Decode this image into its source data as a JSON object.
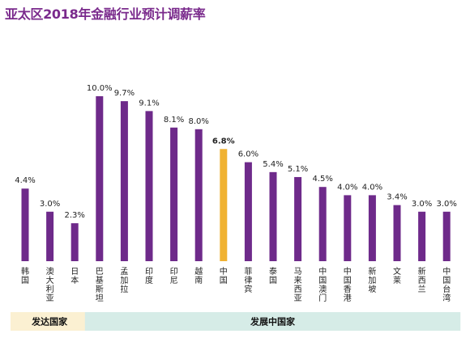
{
  "title": "亚太区2018年金融行业预计调薪率",
  "colors": {
    "bar": "#6e2a8a",
    "highlight": "#f0b232",
    "developed_band": "#fbf0d2",
    "developing_band": "#d6ece7",
    "title": "#7a2a8c"
  },
  "groups": [
    {
      "label": "发达国家",
      "from": 0,
      "to": 2
    },
    {
      "label": "发展中国家",
      "from": 3,
      "to": 17
    }
  ],
  "chart_data": {
    "type": "bar",
    "title": "亚太区2018年金融行业预计调薪率",
    "xlabel": "",
    "ylabel": "",
    "ylim": [
      0,
      10.6
    ],
    "grid": false,
    "legend": "none",
    "highlight_category": "中国",
    "categories": [
      "韩国",
      "澳大利亚",
      "日本",
      "巴基斯坦",
      "孟加拉",
      "印度",
      "印尼",
      "越南",
      "中国",
      "菲律宾",
      "泰国",
      "马来西亚",
      "中国澳门",
      "中国香港",
      "新加坡",
      "文莱",
      "新西兰",
      "中国台湾"
    ],
    "values": [
      4.4,
      3.0,
      2.3,
      10.0,
      9.7,
      9.1,
      8.1,
      8.0,
      6.8,
      6.0,
      5.4,
      5.1,
      4.5,
      4.0,
      4.0,
      3.4,
      3.0,
      3.0
    ],
    "value_labels": [
      "4.4%",
      "3.0%",
      "2.3%",
      "10.0%",
      "9.7%",
      "9.1%",
      "8.1%",
      "8.0%",
      "6.8%",
      "6.0%",
      "5.4%",
      "5.1%",
      "4.5%",
      "4.0%",
      "4.0%",
      "3.4%",
      "3.0%",
      "3.0%"
    ]
  }
}
